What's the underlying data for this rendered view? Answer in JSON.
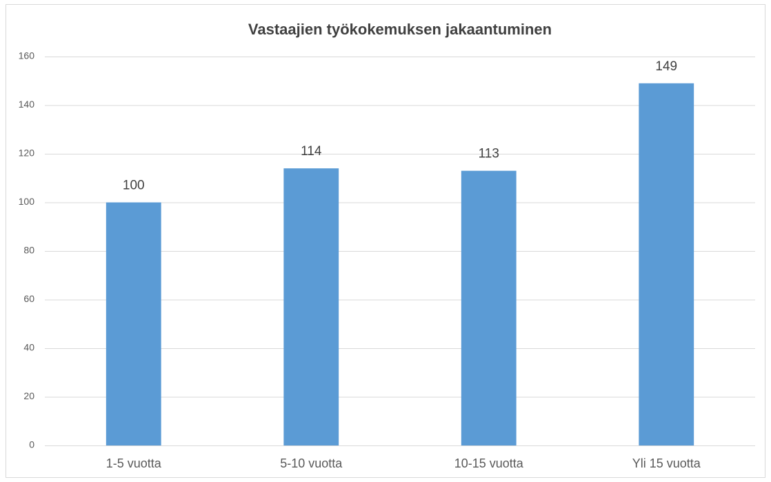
{
  "chart_data": {
    "type": "bar",
    "title": "Vastaajien työkokemuksen jakaantuminen",
    "categories": [
      "1-5 vuotta",
      "5-10 vuotta",
      "10-15 vuotta",
      "Yli 15 vuotta"
    ],
    "values": [
      100,
      114,
      113,
      149
    ],
    "color": "#5b9bd5",
    "ylim": [
      0,
      160
    ],
    "yticks": [
      0,
      20,
      40,
      60,
      80,
      100,
      120,
      140,
      160
    ],
    "grid": true
  }
}
